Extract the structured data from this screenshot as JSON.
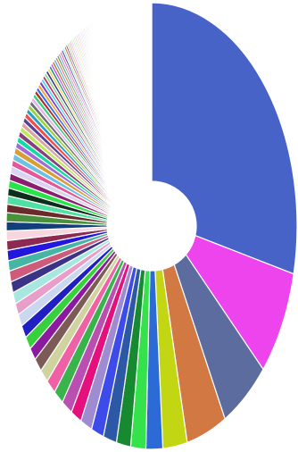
{
  "chart_data": {
    "type": "pie",
    "variant": "donut",
    "title": "",
    "legend": "none",
    "head_values": [
      30.5,
      8.2,
      5.9,
      4.8,
      2.9
    ],
    "head_colors": [
      "#4763c8",
      "#ee44ee",
      "#5d6c9f",
      "#d27843",
      "#c2d614"
    ],
    "mid_values": [
      2.0,
      1.8,
      1.7,
      1.6,
      1.5,
      1.4,
      1.3,
      1.3,
      1.2,
      1.2,
      1.1,
      1.1,
      1.0,
      1.0,
      1.0,
      0.95,
      0.9,
      0.9,
      0.85,
      0.85,
      0.8,
      0.8,
      0.75,
      0.75,
      0.7,
      0.7,
      0.65,
      0.65,
      0.6,
      0.6,
      0.55,
      0.55,
      0.5,
      0.5,
      0.5,
      0.45,
      0.45,
      0.45,
      0.4,
      0.4,
      0.4,
      0.4,
      0.38,
      0.36,
      0.35,
      0.34,
      0.33,
      0.32,
      0.31,
      0.3,
      0.3,
      0.29,
      0.28,
      0.28,
      0.27,
      0.26,
      0.26,
      0.25,
      0.25,
      0.24,
      0.24,
      0.23,
      0.23,
      0.22,
      0.22,
      0.21,
      0.21,
      0.2,
      0.2,
      0.2
    ],
    "mid_colors": [
      "#2c6ad5",
      "#36e24b",
      "#178a31",
      "#2c58a6",
      "#3d4ce8",
      "#9f8bd0",
      "#e4107e",
      "#b950b1",
      "#39b44a",
      "#f060a5",
      "#cfd39f",
      "#7c5a55",
      "#8c1aa0",
      "#37d13d",
      "#1f1fc4",
      "#cbd7ef",
      "#e99ec9",
      "#a8e7e0",
      "#3a3388",
      "#cf5b7c",
      "#45b6a3",
      "#2217dc",
      "#8d2a52",
      "#f7d6e0",
      "#123f7a",
      "#49913c",
      "#6b2b2b",
      "#51e0a4",
      "#0e2d1a",
      "#2ae24a",
      "#8a1f70",
      "#dad3f2",
      "#e4579b",
      "#6fc1e3",
      "#d79f35",
      "#a06bd8",
      "#14d9a2",
      "#873f7d",
      "#bee75b",
      "#d8a5a5",
      "#5a3f96",
      "#f04d4d",
      "#26a0c5",
      "#9ad13c",
      "#6e6e6e",
      "#e2b3f7",
      "#3acc79",
      "#ad2f2f",
      "#2f6fe2",
      "#f4a532",
      "#7d36d3",
      "#50d8f0",
      "#c4305f",
      "#89d99a",
      "#41307a",
      "#e8d84b",
      "#1e8c8c",
      "#d04ad6",
      "#9c7b2a",
      "#64a0f0",
      "#e37a5e",
      "#36a857",
      "#b18ce3",
      "#f25ea0",
      "#2f4fbf",
      "#9ee3c7",
      "#d6612a",
      "#6c3aa1",
      "#a8d45e",
      "#e8a1d4"
    ],
    "tail_count": 160,
    "tail_total": 10.2,
    "tail_colors": [
      "#ff7aa8",
      "#7ad1ff",
      "#a6e36b",
      "#ffb347",
      "#c39bff",
      "#66d9b8",
      "#ff8f6b",
      "#8fa8ff",
      "#f0d35c",
      "#d68fff",
      "#5fd4e8",
      "#ff9ecf"
    ]
  }
}
